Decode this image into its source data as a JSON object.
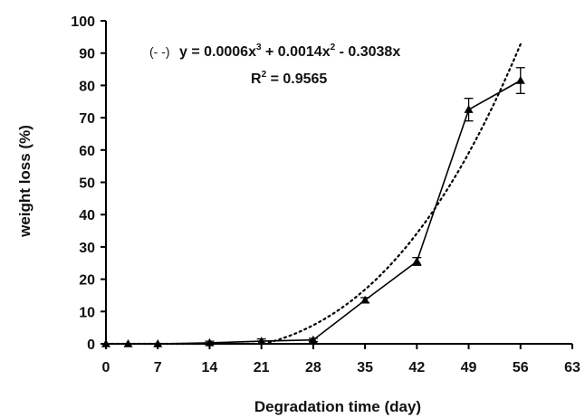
{
  "chart_data": {
    "type": "line",
    "xlabel": "Degradation time (day)",
    "ylabel": "weight loss (%)",
    "xlim": [
      0,
      63
    ],
    "ylim": [
      0,
      100
    ],
    "x_ticks": [
      "0",
      "7",
      "14",
      "21",
      "28",
      "35",
      "42",
      "49",
      "56",
      "63"
    ],
    "y_ticks": [
      "0",
      "10",
      "20",
      "30",
      "40",
      "50",
      "60",
      "70",
      "80",
      "90",
      "100"
    ],
    "grid": false,
    "series": [
      {
        "marker": "triangle",
        "line_style": "solid",
        "points": [
          {
            "x": 0,
            "y": 0,
            "err": 0
          },
          {
            "x": 3,
            "y": 0,
            "err": 0
          },
          {
            "x": 7,
            "y": 0,
            "err": 0
          },
          {
            "x": 14,
            "y": 0.3,
            "err": 0.5
          },
          {
            "x": 21,
            "y": 0.8,
            "err": 0.7
          },
          {
            "x": 28,
            "y": 1.2,
            "err": 0.5
          },
          {
            "x": 35,
            "y": 13.5,
            "err": 0.8
          },
          {
            "x": 42,
            "y": 25.5,
            "err": 1.2
          },
          {
            "x": 49,
            "y": 72.5,
            "err": 3.5
          },
          {
            "x": 56,
            "y": 81.5,
            "err": 4.0
          }
        ]
      },
      {
        "line_style": "dotted",
        "fit": {
          "a3": 0.0006,
          "a2": 0.0014,
          "a1": -0.3038,
          "x_range": [
            0,
            56
          ]
        }
      }
    ],
    "annotations": {
      "equation_prefix": "(- -)",
      "equation_parts": [
        "y = 0.0006x",
        "3",
        " + 0.0014x",
        "2",
        " - 0.3038x"
      ],
      "r2_parts": [
        "R",
        "2",
        " = 0.9565"
      ]
    }
  }
}
